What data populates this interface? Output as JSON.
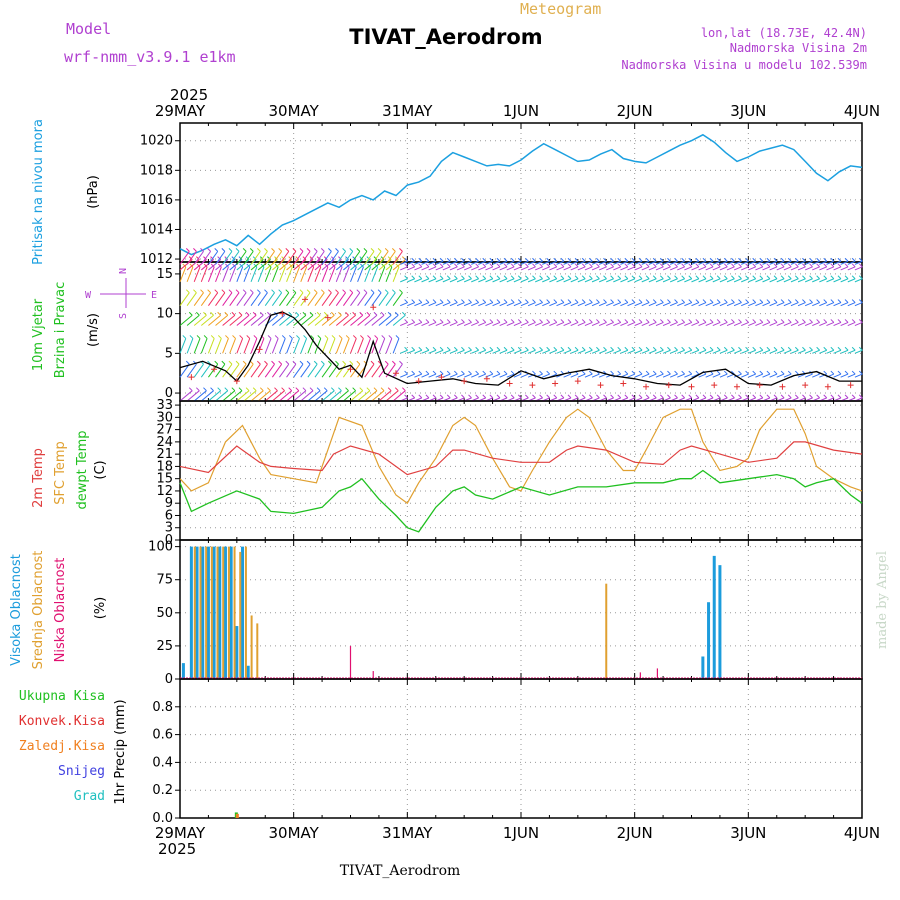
{
  "header": {
    "model_label": "Model",
    "model_name": "wrf-nmm_v3.9.1  e1km",
    "meteogram_label": "Meteogram",
    "station_title": "TIVAT_Aerodrom",
    "lonlat": "lon,lat (18.73E, 42.4N)",
    "elevation": "Nadmorska Visina 2m",
    "model_elevation": "Nadmorska Visina u modelu 102.539m",
    "footer_title": "TIVAT_Aerodrom",
    "watermark": "made by Angel"
  },
  "colors": {
    "pressure": "#1ca0e0",
    "temp2m": "#e04040",
    "sfc": "#e0a030",
    "dewpt": "#20c020",
    "purple": "#b040d0",
    "high_cloud": "#1c9cdc",
    "mid_cloud": "#e0a030",
    "low_cloud": "#e01070",
    "total_precip": "#20c020",
    "conv_precip": "#e03030",
    "frozen_precip": "#f08020",
    "snow": "#4040e0",
    "hail": "#20c0c0"
  },
  "time_axis": {
    "year": "2025",
    "labels": [
      "29MAY",
      "30MAY",
      "31MAY",
      "1JUN",
      "2JUN",
      "3JUN",
      "4JUN"
    ]
  },
  "chart_data": [
    {
      "type": "line",
      "panel": "pressure",
      "ylabel_left": "Pritisak na nivou mora",
      "unit": "(hPa)",
      "ylim": [
        1011.8,
        1021.2
      ],
      "yticks": [
        1012,
        1014,
        1016,
        1018,
        1020
      ],
      "grid": true,
      "series": [
        {
          "x": [
            0,
            0.1,
            0.2,
            0.3,
            0.4,
            0.5,
            0.6,
            0.7,
            0.8,
            0.9,
            1.0,
            1.1,
            1.2,
            1.3,
            1.4,
            1.5,
            1.6,
            1.7,
            1.8,
            1.9,
            2.0,
            2.1,
            2.2,
            2.3,
            2.4,
            2.5,
            2.6,
            2.7,
            2.8,
            2.9,
            3.0,
            3.1,
            3.2,
            3.3,
            3.4,
            3.5,
            3.6,
            3.7,
            3.8,
            3.9,
            4.0,
            4.1,
            4.2,
            4.3,
            4.4,
            4.5,
            4.6,
            4.7,
            4.8,
            4.9,
            5.0,
            5.1,
            5.2,
            5.3,
            5.4,
            5.5,
            5.6,
            5.7,
            5.8,
            5.9,
            6.0
          ],
          "values": [
            1012.7,
            1012.3,
            1012.6,
            1013.0,
            1013.3,
            1012.9,
            1013.6,
            1013.0,
            1013.7,
            1014.3,
            1014.6,
            1015.0,
            1015.4,
            1015.8,
            1015.5,
            1016.0,
            1016.3,
            1016.0,
            1016.6,
            1016.3,
            1017.0,
            1017.2,
            1017.6,
            1018.6,
            1019.2,
            1018.9,
            1018.6,
            1018.3,
            1018.4,
            1018.3,
            1018.7,
            1019.3,
            1019.8,
            1019.4,
            1019.0,
            1018.6,
            1018.7,
            1019.1,
            1019.4,
            1018.8,
            1018.6,
            1018.5,
            1018.9,
            1019.3,
            1019.7,
            1020.0,
            1020.4,
            1019.9,
            1019.2,
            1018.6,
            1018.9,
            1019.3,
            1019.5,
            1019.7,
            1019.4,
            1018.6,
            1017.8,
            1017.3,
            1017.9,
            1018.3,
            1018.2
          ]
        }
      ]
    },
    {
      "type": "line",
      "panel": "wind",
      "ylabel_left": [
        "10m Vjetar",
        "Brzina i Pravac"
      ],
      "unit": "(m/s)",
      "compass": {
        "n": "N",
        "s": "S",
        "e": "E",
        "w": "W"
      },
      "ylim": [
        -1,
        16.5
      ],
      "yticks": [
        0,
        5,
        10,
        15
      ],
      "barb_rows": [
        -1,
        2,
        5,
        8.5,
        11,
        14,
        15.5,
        16.2
      ],
      "series": [
        {
          "name": "wind speed",
          "x": [
            0,
            0.2,
            0.4,
            0.5,
            0.6,
            0.7,
            0.8,
            0.9,
            1.0,
            1.1,
            1.2,
            1.4,
            1.5,
            1.6,
            1.7,
            1.8,
            2.0,
            2.2,
            2.4,
            2.6,
            2.8,
            3.0,
            3.2,
            3.4,
            3.6,
            3.8,
            4.0,
            4.2,
            4.4,
            4.6,
            4.8,
            5.0,
            5.2,
            5.4,
            5.6,
            5.8,
            6.0
          ],
          "values": [
            3.2,
            4.0,
            2.8,
            1.5,
            3.5,
            6.5,
            9.8,
            10.2,
            9.5,
            8.0,
            6.0,
            3.0,
            3.5,
            2.0,
            6.5,
            2.5,
            1.2,
            1.5,
            1.8,
            1.2,
            1.0,
            2.8,
            1.8,
            2.5,
            3.0,
            2.2,
            1.8,
            1.2,
            1.0,
            2.6,
            3.0,
            1.2,
            1.0,
            2.2,
            2.7,
            1.5,
            1.5
          ]
        },
        {
          "name": "gust markers",
          "x": [
            0.1,
            0.3,
            0.5,
            0.7,
            0.9,
            1.1,
            1.3,
            1.5,
            1.7,
            1.9,
            2.1,
            2.3,
            2.5,
            2.7,
            2.9,
            3.1,
            3.3,
            3.5,
            3.7,
            3.9,
            4.1,
            4.3,
            4.5,
            4.7,
            4.9,
            5.1,
            5.3,
            5.5,
            5.7,
            5.9
          ],
          "values": [
            2.0,
            3.0,
            1.5,
            5.5,
            10.0,
            11.8,
            9.5,
            3.0,
            10.8,
            2.5,
            1.5,
            2.0,
            1.5,
            1.8,
            1.2,
            1.0,
            1.2,
            1.5,
            1.0,
            1.2,
            0.8,
            1.0,
            0.8,
            1.0,
            0.8,
            1.0,
            0.8,
            1.0,
            0.8,
            1.0
          ]
        }
      ]
    },
    {
      "type": "line",
      "panel": "temperature",
      "ylabel_left": [
        "2m Temp",
        "SFC Temp",
        "dewpt Temp"
      ],
      "unit": "(C)",
      "ylim": [
        0,
        34
      ],
      "yticks": [
        0,
        3,
        6,
        9,
        12,
        15,
        18,
        21,
        24,
        27,
        30,
        33
      ],
      "series": [
        {
          "name": "2m Temp",
          "x": [
            0,
            0.25,
            0.5,
            0.55,
            0.7,
            0.8,
            1.0,
            1.25,
            1.35,
            1.5,
            1.75,
            2.0,
            2.25,
            2.4,
            2.5,
            2.75,
            3.0,
            3.25,
            3.4,
            3.5,
            3.75,
            4.0,
            4.25,
            4.4,
            4.5,
            4.75,
            5.0,
            5.25,
            5.4,
            5.5,
            5.75,
            6.0
          ],
          "values": [
            18,
            16.5,
            23,
            22,
            19,
            18,
            17.5,
            17,
            21,
            23,
            21,
            16,
            18,
            22,
            22,
            20,
            19,
            19,
            22,
            23,
            22,
            19,
            18.5,
            22,
            23,
            21,
            19,
            20,
            24,
            24,
            22,
            21
          ]
        },
        {
          "name": "SFC Temp",
          "x": [
            0,
            0.1,
            0.25,
            0.4,
            0.55,
            0.7,
            0.8,
            1.0,
            1.2,
            1.3,
            1.4,
            1.6,
            1.75,
            1.9,
            2.0,
            2.1,
            2.25,
            2.4,
            2.5,
            2.6,
            2.75,
            2.9,
            3.0,
            3.1,
            3.25,
            3.4,
            3.5,
            3.6,
            3.75,
            3.9,
            4.0,
            4.1,
            4.25,
            4.4,
            4.5,
            4.6,
            4.75,
            4.9,
            5.0,
            5.1,
            5.25,
            5.4,
            5.5,
            5.6,
            5.75,
            5.9,
            6.0
          ],
          "values": [
            15,
            12,
            14,
            24,
            28,
            20,
            16,
            15,
            14,
            22,
            30,
            28,
            18,
            11,
            9,
            14,
            20,
            28,
            30,
            28,
            20,
            13,
            12,
            17,
            24,
            30,
            32,
            30,
            22,
            17,
            17,
            22,
            30,
            32,
            32,
            24,
            17,
            18,
            20,
            27,
            32,
            32,
            26,
            18,
            15,
            13,
            12
          ]
        },
        {
          "name": "dewpt Temp",
          "x": [
            0,
            0.1,
            0.25,
            0.5,
            0.7,
            0.8,
            1.0,
            1.25,
            1.4,
            1.5,
            1.6,
            1.75,
            1.9,
            2.0,
            2.1,
            2.25,
            2.4,
            2.5,
            2.6,
            2.75,
            3.0,
            3.25,
            3.5,
            3.75,
            4.0,
            4.25,
            4.4,
            4.5,
            4.6,
            4.75,
            5.0,
            5.25,
            5.4,
            5.5,
            5.6,
            5.75,
            5.9,
            6.0
          ],
          "values": [
            14,
            7,
            9,
            12,
            10,
            7,
            6.5,
            8,
            12,
            13,
            15,
            10,
            6,
            3,
            2,
            8,
            12,
            13,
            11,
            10,
            13,
            11,
            13,
            13,
            14,
            14,
            15,
            15,
            17,
            14,
            15,
            16,
            15,
            13,
            14,
            15,
            11,
            9
          ]
        }
      ]
    },
    {
      "type": "bar",
      "panel": "cloud",
      "ylabel_left": [
        "Visoka Oblacnost",
        "Srednja Oblacnost",
        "Niska Oblacnost"
      ],
      "unit": "(%)",
      "ylim": [
        0,
        105
      ],
      "yticks": [
        0,
        25,
        50,
        75,
        100
      ],
      "series": [
        {
          "name": "Visoka Oblacnost",
          "x": [
            0.03,
            0.1,
            0.15,
            0.2,
            0.25,
            0.3,
            0.35,
            0.4,
            0.45,
            0.5,
            0.55,
            0.6,
            4.6,
            4.65,
            4.7,
            4.75
          ],
          "values": [
            12,
            100,
            100,
            100,
            100,
            100,
            100,
            100,
            100,
            40,
            100,
            10,
            17,
            58,
            93,
            86
          ]
        },
        {
          "name": "Srednja Oblacnost",
          "x": [
            0.13,
            0.18,
            0.23,
            0.28,
            0.33,
            0.38,
            0.43,
            0.48,
            0.53,
            0.58,
            0.63,
            0.68,
            3.75
          ],
          "values": [
            100,
            100,
            100,
            100,
            100,
            100,
            100,
            100,
            96,
            100,
            48,
            42,
            72
          ]
        },
        {
          "name": "Niska Oblacnost",
          "x": [
            1.5,
            1.7,
            4.05,
            4.2,
            5.8
          ],
          "values": [
            25,
            6,
            5,
            8,
            1
          ]
        }
      ]
    },
    {
      "type": "bar",
      "panel": "precip",
      "ylabel_left": [
        "Ukupna Kisa",
        "Konvek.Kisa",
        "Zaledj.Kisa",
        "Snijeg",
        "Grad"
      ],
      "unit": "1hr Precip (mm)",
      "ylim": [
        0,
        1.0
      ],
      "yticks": [
        0,
        0.2,
        0.4,
        0.6,
        0.8
      ],
      "series": [
        {
          "name": "Ukupna Kisa",
          "x": [
            0.5
          ],
          "values": [
            0.04
          ]
        },
        {
          "name": "Zaledj.Kisa",
          "x": [
            0.5
          ],
          "values": [
            0.03
          ]
        }
      ]
    }
  ]
}
